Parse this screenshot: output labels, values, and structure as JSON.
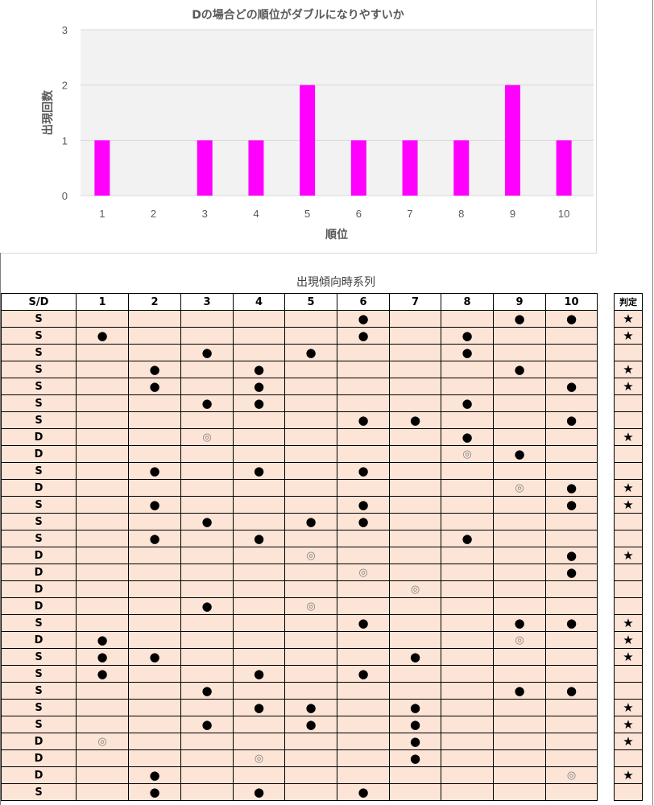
{
  "chart_data": {
    "type": "bar",
    "title": "Dの場合どの順位がダブルになりやすいか",
    "xlabel": "順位",
    "ylabel": "出現回数",
    "categories": [
      "1",
      "2",
      "3",
      "4",
      "5",
      "6",
      "7",
      "8",
      "9",
      "10"
    ],
    "values": [
      1,
      0,
      1,
      1,
      2,
      1,
      1,
      1,
      2,
      1
    ],
    "ylim": [
      0,
      3
    ],
    "yticks": [
      "0",
      "1",
      "2",
      "3"
    ],
    "color": "#ff00ff",
    "grid": true,
    "legend": "none"
  },
  "table": {
    "caption": "出現傾向時系列",
    "headers": [
      "S/D",
      "1",
      "2",
      "3",
      "4",
      "5",
      "6",
      "7",
      "8",
      "9",
      "10"
    ],
    "judge_header": "判定",
    "rows": [
      {
        "sd": "S",
        "cells": [
          "",
          "",
          "",
          "",
          "",
          "●",
          "",
          "",
          "●",
          "●"
        ],
        "judge": "★"
      },
      {
        "sd": "S",
        "cells": [
          "●",
          "",
          "",
          "",
          "",
          "●",
          "",
          "●",
          "",
          ""
        ],
        "judge": "★"
      },
      {
        "sd": "S",
        "cells": [
          "",
          "",
          "●",
          "",
          "●",
          "",
          "",
          "●",
          "",
          ""
        ],
        "judge": ""
      },
      {
        "sd": "S",
        "cells": [
          "",
          "●",
          "",
          "●",
          "",
          "",
          "",
          "",
          "●",
          ""
        ],
        "judge": "★"
      },
      {
        "sd": "S",
        "cells": [
          "",
          "●",
          "",
          "●",
          "",
          "",
          "",
          "",
          "",
          "●"
        ],
        "judge": "★"
      },
      {
        "sd": "S",
        "cells": [
          "",
          "",
          "●",
          "●",
          "",
          "",
          "",
          "●",
          "",
          ""
        ],
        "judge": ""
      },
      {
        "sd": "S",
        "cells": [
          "",
          "",
          "",
          "",
          "",
          "●",
          "●",
          "",
          "",
          "●"
        ],
        "judge": ""
      },
      {
        "sd": "D",
        "cells": [
          "",
          "",
          "◎",
          "",
          "",
          "",
          "",
          "●",
          "",
          ""
        ],
        "judge": "★"
      },
      {
        "sd": "D",
        "cells": [
          "",
          "",
          "",
          "",
          "",
          "",
          "",
          "◎",
          "●",
          ""
        ],
        "judge": ""
      },
      {
        "sd": "S",
        "cells": [
          "",
          "●",
          "",
          "●",
          "",
          "●",
          "",
          "",
          "",
          ""
        ],
        "judge": ""
      },
      {
        "sd": "D",
        "cells": [
          "",
          "",
          "",
          "",
          "",
          "",
          "",
          "",
          "◎",
          "●"
        ],
        "judge": "★"
      },
      {
        "sd": "S",
        "cells": [
          "",
          "●",
          "",
          "",
          "",
          "●",
          "",
          "",
          "",
          "●"
        ],
        "judge": "★"
      },
      {
        "sd": "S",
        "cells": [
          "",
          "",
          "●",
          "",
          "●",
          "●",
          "",
          "",
          "",
          ""
        ],
        "judge": ""
      },
      {
        "sd": "S",
        "cells": [
          "",
          "●",
          "",
          "●",
          "",
          "",
          "",
          "●",
          "",
          ""
        ],
        "judge": ""
      },
      {
        "sd": "D",
        "cells": [
          "",
          "",
          "",
          "",
          "◎",
          "",
          "",
          "",
          "",
          "●"
        ],
        "judge": "★"
      },
      {
        "sd": "D",
        "cells": [
          "",
          "",
          "",
          "",
          "",
          "◎",
          "",
          "",
          "",
          "●"
        ],
        "judge": ""
      },
      {
        "sd": "D",
        "cells": [
          "",
          "",
          "",
          "",
          "",
          "",
          "◎",
          "",
          "",
          ""
        ],
        "judge": ""
      },
      {
        "sd": "D",
        "cells": [
          "",
          "",
          "●",
          "",
          "◎",
          "",
          "",
          "",
          "",
          ""
        ],
        "judge": ""
      },
      {
        "sd": "S",
        "cells": [
          "",
          "",
          "",
          "",
          "",
          "●",
          "",
          "",
          "●",
          "●"
        ],
        "judge": "★"
      },
      {
        "sd": "D",
        "cells": [
          "●",
          "",
          "",
          "",
          "",
          "",
          "",
          "",
          "◎",
          ""
        ],
        "judge": "★"
      },
      {
        "sd": "S",
        "cells": [
          "●",
          "●",
          "",
          "",
          "",
          "",
          "●",
          "",
          "",
          ""
        ],
        "judge": "★"
      },
      {
        "sd": "S",
        "cells": [
          "●",
          "",
          "",
          "●",
          "",
          "●",
          "",
          "",
          "",
          ""
        ],
        "judge": ""
      },
      {
        "sd": "S",
        "cells": [
          "",
          "",
          "●",
          "",
          "",
          "",
          "",
          "",
          "●",
          "●"
        ],
        "judge": ""
      },
      {
        "sd": "S",
        "cells": [
          "",
          "",
          "",
          "●",
          "●",
          "",
          "●",
          "",
          "",
          ""
        ],
        "judge": "★"
      },
      {
        "sd": "S",
        "cells": [
          "",
          "",
          "●",
          "",
          "●",
          "",
          "●",
          "",
          "",
          ""
        ],
        "judge": "★"
      },
      {
        "sd": "D",
        "cells": [
          "◎",
          "",
          "",
          "",
          "",
          "",
          "●",
          "",
          "",
          ""
        ],
        "judge": "★"
      },
      {
        "sd": "D",
        "cells": [
          "",
          "",
          "",
          "◎",
          "",
          "",
          "●",
          "",
          "",
          ""
        ],
        "judge": ""
      },
      {
        "sd": "D",
        "cells": [
          "",
          "●",
          "",
          "",
          "",
          "",
          "",
          "",
          "",
          "◎"
        ],
        "judge": "★"
      },
      {
        "sd": "S",
        "cells": [
          "",
          "●",
          "",
          "●",
          "",
          "●",
          "",
          "",
          "",
          ""
        ],
        "judge": ""
      }
    ]
  }
}
